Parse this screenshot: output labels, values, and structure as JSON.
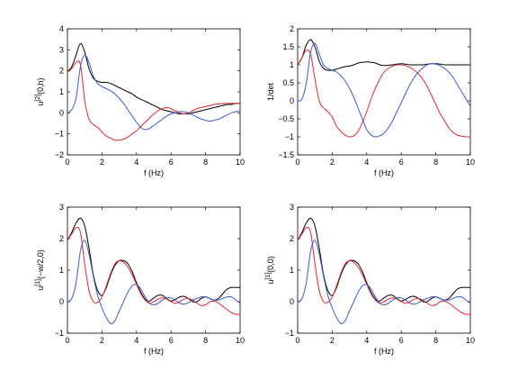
{
  "colors": {
    "black": "#000000",
    "red": "#e8262a",
    "blue": "#3b5bd6"
  },
  "chart_data": [
    {
      "type": "line",
      "ylabel": "u^[2](0,h)",
      "ylabel_parts": [
        "u",
        "[2]",
        "(0,h)"
      ],
      "xlabel": "f (Hz)",
      "xlim": [
        0,
        10
      ],
      "ylim": [
        -2,
        4
      ],
      "xticks": [
        0,
        2,
        4,
        6,
        8,
        10
      ],
      "yticks": [
        -2,
        -1,
        0,
        1,
        2,
        3,
        4
      ],
      "x": [
        0,
        0.25,
        0.5,
        0.75,
        1,
        1.25,
        1.5,
        1.75,
        2,
        2.25,
        2.5,
        2.75,
        3,
        3.25,
        3.5,
        3.75,
        4,
        4.25,
        4.5,
        4.75,
        5,
        5.25,
        5.5,
        5.75,
        6,
        6.25,
        6.5,
        6.75,
        7,
        7.25,
        7.5,
        7.75,
        8,
        8.25,
        8.5,
        8.75,
        9,
        9.25,
        9.5,
        9.75,
        10
      ],
      "series": [
        {
          "color": "#000000",
          "values": [
            1.95,
            2.2,
            2.75,
            3.3,
            2.9,
            2.1,
            1.65,
            1.5,
            1.45,
            1.45,
            1.4,
            1.3,
            1.2,
            1.1,
            1.0,
            0.9,
            0.75,
            0.65,
            0.55,
            0.45,
            0.35,
            0.25,
            0.15,
            0.1,
            0.05,
            0.0,
            -0.05,
            -0.05,
            -0.05,
            0.0,
            0.05,
            0.1,
            0.15,
            0.2,
            0.25,
            0.3,
            0.35,
            0.4,
            0.4,
            0.45,
            0.45
          ]
        },
        {
          "color": "#e8262a",
          "values": [
            1.95,
            2.1,
            2.4,
            2.3,
            0.6,
            -0.3,
            -0.55,
            -0.7,
            -0.9,
            -1.1,
            -1.2,
            -1.3,
            -1.3,
            -1.25,
            -1.15,
            -1.0,
            -0.85,
            -0.65,
            -0.45,
            -0.25,
            -0.05,
            0.1,
            0.2,
            0.25,
            0.2,
            0.1,
            0.0,
            -0.05,
            0.0,
            0.1,
            0.2,
            0.25,
            0.3,
            0.35,
            0.4,
            0.42,
            0.45,
            0.45,
            0.45,
            0.45,
            0.45
          ]
        },
        {
          "color": "#3b5bd6",
          "values": [
            0.0,
            0.15,
            0.7,
            2.2,
            2.75,
            2.4,
            1.75,
            1.4,
            1.25,
            1.15,
            1.05,
            0.9,
            0.7,
            0.45,
            0.15,
            -0.15,
            -0.45,
            -0.7,
            -0.8,
            -0.75,
            -0.6,
            -0.45,
            -0.3,
            -0.15,
            -0.05,
            0.0,
            0.05,
            0.05,
            0.0,
            -0.1,
            -0.2,
            -0.3,
            -0.35,
            -0.4,
            -0.35,
            -0.3,
            -0.2,
            -0.1,
            0.0,
            0.05,
            0.1
          ]
        }
      ]
    },
    {
      "type": "line",
      "ylabel": "1/det",
      "ylabel_parts": [
        "1/det",
        "",
        ""
      ],
      "xlabel": "f (Hz)",
      "xlim": [
        0,
        10
      ],
      "ylim": [
        -1.5,
        2
      ],
      "xticks": [
        0,
        2,
        4,
        6,
        8,
        10
      ],
      "yticks": [
        -1.5,
        -1,
        -0.5,
        0,
        0.5,
        1,
        1.5,
        2
      ],
      "x": [
        0,
        0.25,
        0.5,
        0.75,
        1,
        1.25,
        1.5,
        1.75,
        2,
        2.25,
        2.5,
        2.75,
        3,
        3.25,
        3.5,
        3.75,
        4,
        4.25,
        4.5,
        4.75,
        5,
        5.25,
        5.5,
        5.75,
        6,
        6.25,
        6.5,
        6.75,
        7,
        7.25,
        7.5,
        7.75,
        8,
        8.25,
        8.5,
        8.75,
        9,
        9.25,
        9.5,
        9.75,
        10
      ],
      "series": [
        {
          "color": "#000000",
          "values": [
            1.0,
            1.2,
            1.55,
            1.7,
            1.5,
            1.1,
            0.9,
            0.85,
            0.85,
            0.88,
            0.92,
            0.95,
            0.97,
            1.0,
            1.05,
            1.07,
            1.08,
            1.07,
            1.05,
            1.0,
            0.98,
            0.99,
            1.0,
            1.02,
            1.03,
            1.02,
            1.0,
            1.0,
            1.0,
            1.0,
            1.02,
            1.03,
            1.03,
            1.02,
            1.0,
            1.0,
            1.0,
            1.0,
            1.0,
            1.0,
            1.0
          ]
        },
        {
          "color": "#e8262a",
          "values": [
            1.0,
            1.2,
            1.4,
            1.3,
            0.6,
            0.0,
            -0.2,
            -0.3,
            -0.45,
            -0.7,
            -0.85,
            -0.95,
            -1.0,
            -0.97,
            -0.85,
            -0.6,
            -0.3,
            0.05,
            0.35,
            0.6,
            0.8,
            0.9,
            0.97,
            1.0,
            1.0,
            0.98,
            0.93,
            0.85,
            0.75,
            0.6,
            0.4,
            0.15,
            -0.1,
            -0.35,
            -0.55,
            -0.75,
            -0.88,
            -0.95,
            -0.98,
            -1.0,
            -1.0
          ]
        },
        {
          "color": "#3b5bd6",
          "values": [
            0.0,
            0.05,
            0.5,
            1.35,
            1.6,
            1.3,
            1.0,
            0.9,
            0.85,
            0.8,
            0.7,
            0.55,
            0.35,
            0.1,
            -0.2,
            -0.5,
            -0.8,
            -0.95,
            -1.0,
            -0.97,
            -0.9,
            -0.75,
            -0.55,
            -0.3,
            -0.05,
            0.2,
            0.45,
            0.65,
            0.8,
            0.92,
            1.0,
            1.03,
            1.02,
            0.98,
            0.9,
            0.8,
            0.65,
            0.45,
            0.25,
            0.05,
            -0.15
          ]
        }
      ]
    },
    {
      "type": "line",
      "ylabel": "u^[1](−w/2,0)",
      "ylabel_parts": [
        "u",
        "[1]",
        "(−w/2,0)"
      ],
      "xlabel": "f (Hz)",
      "xlim": [
        0,
        10
      ],
      "ylim": [
        -1,
        3
      ],
      "xticks": [
        0,
        2,
        4,
        6,
        8,
        10
      ],
      "yticks": [
        -1,
        0,
        1,
        2,
        3
      ],
      "x": [
        0,
        0.25,
        0.5,
        0.75,
        1,
        1.25,
        1.5,
        1.75,
        2,
        2.25,
        2.5,
        2.75,
        3,
        3.25,
        3.5,
        3.75,
        4,
        4.25,
        4.5,
        4.75,
        5,
        5.25,
        5.5,
        5.75,
        6,
        6.25,
        6.5,
        6.75,
        7,
        7.25,
        7.5,
        7.75,
        8,
        8.25,
        8.5,
        8.75,
        9,
        9.25,
        9.5,
        9.75,
        10
      ],
      "series": [
        {
          "color": "#000000",
          "values": [
            1.95,
            2.2,
            2.5,
            2.65,
            2.4,
            1.7,
            0.85,
            0.35,
            0.2,
            0.45,
            0.85,
            1.15,
            1.3,
            1.3,
            1.2,
            0.95,
            0.6,
            0.3,
            0.08,
            0.02,
            0.12,
            0.2,
            0.2,
            0.1,
            0.02,
            0.07,
            0.15,
            0.17,
            0.1,
            0.0,
            0.0,
            0.1,
            0.15,
            0.1,
            0.05,
            0.1,
            0.25,
            0.4,
            0.45,
            0.45,
            0.45
          ]
        },
        {
          "color": "#e8262a",
          "values": [
            1.95,
            2.15,
            2.35,
            2.2,
            1.2,
            0.35,
            0.0,
            -0.02,
            0.15,
            0.5,
            0.9,
            1.2,
            1.3,
            1.25,
            1.1,
            0.85,
            0.55,
            0.25,
            0.05,
            -0.05,
            0.0,
            0.08,
            0.12,
            0.08,
            0.0,
            -0.05,
            0.0,
            0.08,
            0.1,
            0.05,
            -0.05,
            -0.12,
            -0.1,
            0.0,
            0.02,
            -0.05,
            -0.15,
            -0.25,
            -0.35,
            -0.4,
            -0.4
          ]
        },
        {
          "color": "#3b5bd6",
          "values": [
            0.0,
            0.1,
            0.6,
            1.6,
            1.95,
            1.5,
            0.8,
            0.2,
            -0.2,
            -0.5,
            -0.7,
            -0.6,
            -0.3,
            0.0,
            0.3,
            0.5,
            0.55,
            0.4,
            0.15,
            -0.05,
            -0.1,
            -0.05,
            0.05,
            0.12,
            0.12,
            0.05,
            -0.05,
            -0.08,
            -0.03,
            0.05,
            0.1,
            0.15,
            0.15,
            0.1,
            0.05,
            0.05,
            0.1,
            0.15,
            0.15,
            0.05,
            -0.05
          ]
        }
      ]
    },
    {
      "type": "line",
      "ylabel": "u^[1](0,0)",
      "ylabel_parts": [
        "u",
        "[1]",
        "(0,0)"
      ],
      "xlabel": "f (Hz)",
      "xlim": [
        0,
        10
      ],
      "ylim": [
        -1,
        3
      ],
      "xticks": [
        0,
        2,
        4,
        6,
        8,
        10
      ],
      "yticks": [
        -1,
        0,
        1,
        2,
        3
      ],
      "x": [
        0,
        0.25,
        0.5,
        0.75,
        1,
        1.25,
        1.5,
        1.75,
        2,
        2.25,
        2.5,
        2.75,
        3,
        3.25,
        3.5,
        3.75,
        4,
        4.25,
        4.5,
        4.75,
        5,
        5.25,
        5.5,
        5.75,
        6,
        6.25,
        6.5,
        6.75,
        7,
        7.25,
        7.5,
        7.75,
        8,
        8.25,
        8.5,
        8.75,
        9,
        9.25,
        9.5,
        9.75,
        10
      ],
      "series": [
        {
          "color": "#000000",
          "values": [
            1.95,
            2.2,
            2.5,
            2.65,
            2.4,
            1.7,
            0.85,
            0.35,
            0.2,
            0.45,
            0.85,
            1.15,
            1.3,
            1.3,
            1.2,
            0.95,
            0.6,
            0.3,
            0.08,
            0.02,
            0.12,
            0.2,
            0.2,
            0.1,
            0.02,
            0.07,
            0.15,
            0.17,
            0.1,
            0.0,
            0.0,
            0.1,
            0.15,
            0.1,
            0.05,
            0.1,
            0.25,
            0.4,
            0.45,
            0.45,
            0.45
          ]
        },
        {
          "color": "#e8262a",
          "values": [
            1.95,
            2.15,
            2.35,
            2.2,
            1.2,
            0.35,
            0.0,
            -0.02,
            0.15,
            0.5,
            0.9,
            1.2,
            1.3,
            1.25,
            1.1,
            0.85,
            0.55,
            0.25,
            0.05,
            -0.05,
            0.0,
            0.08,
            0.12,
            0.08,
            0.0,
            -0.05,
            0.0,
            0.08,
            0.1,
            0.05,
            -0.05,
            -0.12,
            -0.1,
            0.0,
            0.02,
            -0.05,
            -0.15,
            -0.25,
            -0.35,
            -0.4,
            -0.4
          ]
        },
        {
          "color": "#3b5bd6",
          "values": [
            0.0,
            0.1,
            0.6,
            1.6,
            1.95,
            1.5,
            0.8,
            0.2,
            -0.2,
            -0.5,
            -0.7,
            -0.6,
            -0.3,
            0.0,
            0.3,
            0.5,
            0.55,
            0.4,
            0.15,
            -0.05,
            -0.1,
            -0.05,
            0.05,
            0.12,
            0.12,
            0.05,
            -0.05,
            -0.08,
            -0.03,
            0.05,
            0.1,
            0.15,
            0.15,
            0.1,
            0.05,
            0.05,
            0.1,
            0.15,
            0.15,
            0.05,
            -0.05
          ]
        }
      ]
    }
  ]
}
